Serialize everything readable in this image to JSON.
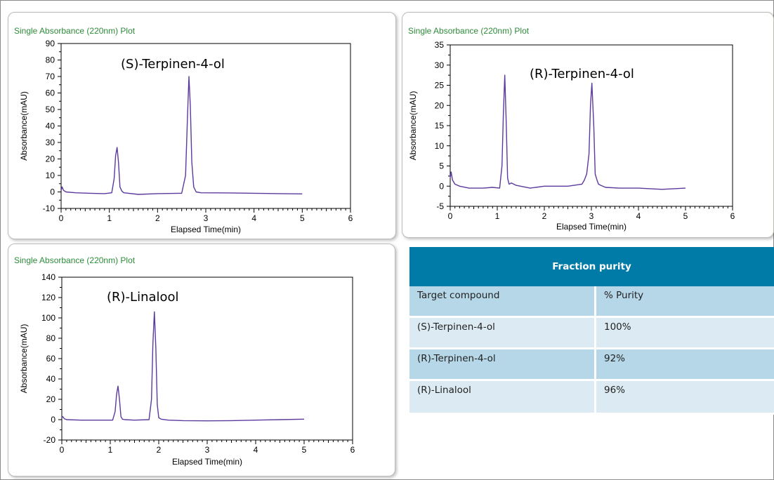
{
  "chart_data": [
    {
      "type": "line",
      "title": "Single Absorbance (220nm) Plot",
      "annotation": "(S)-Terpinen-4-ol",
      "xlabel": "Elapsed Time(min)",
      "ylabel": "Absorbance(mAU)",
      "xlim": [
        0,
        6
      ],
      "ylim": [
        -10,
        90
      ],
      "xticks": [
        0,
        1,
        2,
        3,
        4,
        5,
        6
      ],
      "yticks": [
        -10,
        0,
        10,
        20,
        30,
        40,
        50,
        60,
        70,
        80,
        90
      ],
      "line_color": "#5b3a9e",
      "series": [
        {
          "x": [
            0,
            0.02,
            0.05,
            0.1,
            0.3,
            0.6,
            0.9,
            1.05,
            1.1,
            1.13,
            1.16,
            1.19,
            1.22,
            1.26,
            1.3,
            1.6,
            2.0,
            2.5,
            2.58,
            2.62,
            2.65,
            2.68,
            2.71,
            2.75,
            2.8,
            2.9,
            3.5,
            4.0,
            4.5,
            5.0
          ],
          "y": [
            1,
            3,
            1,
            0,
            -0.5,
            -0.8,
            -1,
            -0.5,
            8,
            22,
            27,
            18,
            3,
            0.5,
            -0.5,
            -1.5,
            -1,
            -0.8,
            10,
            45,
            70,
            52,
            18,
            3,
            0,
            -0.5,
            -0.6,
            -0.8,
            -1,
            -1.2
          ]
        }
      ]
    },
    {
      "type": "line",
      "title": "Single Absorbance (220nm) Plot",
      "annotation": "(R)-Terpinen-4-ol",
      "xlabel": "Elapsed Time(min)",
      "ylabel": "Absorbance(mAU)",
      "xlim": [
        0,
        6
      ],
      "ylim": [
        -5,
        35
      ],
      "xticks": [
        0,
        1,
        2,
        3,
        4,
        5,
        6
      ],
      "yticks": [
        -5,
        0,
        5,
        10,
        15,
        20,
        25,
        30,
        35
      ],
      "line_color": "#5b3a9e",
      "series": [
        {
          "x": [
            0,
            0.02,
            0.05,
            0.1,
            0.2,
            0.4,
            0.7,
            0.9,
            1.05,
            1.1,
            1.13,
            1.16,
            1.19,
            1.22,
            1.25,
            1.3,
            1.4,
            1.7,
            2.0,
            2.5,
            2.8,
            2.85,
            2.9,
            2.95,
            2.98,
            3.01,
            3.05,
            3.08,
            3.12,
            3.15,
            3.2,
            3.3,
            3.6,
            4.0,
            4.5,
            5.0
          ],
          "y": [
            2,
            3.5,
            1.5,
            0.5,
            0,
            -0.5,
            -0.5,
            -0.3,
            -0.5,
            5,
            18,
            27.5,
            16,
            2,
            0.5,
            0.8,
            0.2,
            -0.5,
            0,
            0,
            0.5,
            1.5,
            3,
            8,
            20,
            25.5,
            15,
            3,
            1.5,
            0.5,
            0.2,
            -0.3,
            -0.5,
            -0.5,
            -0.8,
            -0.5
          ]
        }
      ]
    },
    {
      "type": "line",
      "title": "Single Absorbance (220nm) Plot",
      "annotation": "(R)-Linalool",
      "xlabel": "Elapsed Time(min)",
      "ylabel": "Absorbance(mAU)",
      "xlim": [
        0,
        6
      ],
      "ylim": [
        -20,
        140
      ],
      "xticks": [
        0,
        1,
        2,
        3,
        4,
        5,
        6
      ],
      "yticks": [
        -20,
        0,
        20,
        40,
        60,
        80,
        100,
        120,
        140
      ],
      "line_color": "#5b3a9e",
      "series": [
        {
          "x": [
            0,
            0.02,
            0.05,
            0.1,
            0.4,
            0.8,
            1.05,
            1.1,
            1.13,
            1.16,
            1.19,
            1.22,
            1.25,
            1.3,
            1.5,
            1.8,
            1.85,
            1.88,
            1.91,
            1.94,
            1.97,
            2.0,
            2.05,
            2.2,
            2.5,
            3.0,
            3.5,
            4.0,
            4.5,
            5.0
          ],
          "y": [
            2,
            3,
            1,
            0,
            -0.5,
            -0.5,
            -0.5,
            8,
            25,
            33,
            20,
            3,
            0.5,
            0,
            -0.5,
            0,
            20,
            75,
            106,
            70,
            15,
            2,
            0.5,
            -0.5,
            -1,
            -1.2,
            -1,
            -0.5,
            0,
            0.5
          ]
        }
      ]
    }
  ],
  "purity_table": {
    "title": "Fraction purity",
    "headers": [
      "Target compound",
      "% Purity"
    ],
    "rows": [
      [
        "(S)-Terpinen-4-ol",
        "100%"
      ],
      [
        "(R)-Terpinen-4-ol",
        "92%"
      ],
      [
        "(R)-Linalool",
        "96%"
      ]
    ]
  }
}
